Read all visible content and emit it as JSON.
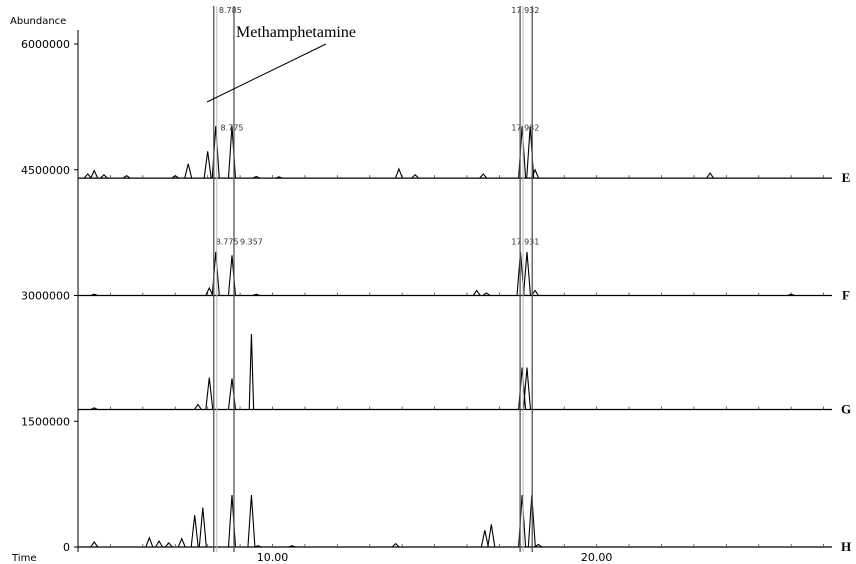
{
  "chart_data": {
    "type": "line",
    "ylabel": "Abundance",
    "xlabel": "Time",
    "y_ticks": [
      {
        "value": 6000000,
        "label": "6000000"
      },
      {
        "value": 4500000,
        "label": "4500000"
      },
      {
        "value": 3000000,
        "label": "3000000"
      },
      {
        "value": 1500000,
        "label": "1500000"
      },
      {
        "value": 0,
        "label": "0"
      }
    ],
    "x_ticks": [
      {
        "value": 10.0,
        "label": "10.00"
      },
      {
        "value": 20.0,
        "label": "20.00"
      }
    ],
    "xlim": [
      4.0,
      28.0
    ],
    "ylim": [
      0,
      6000000
    ],
    "annotation": {
      "text": "Methamphetamine",
      "x": 8.8
    },
    "series": [
      {
        "name": "E",
        "baseline": 4400000,
        "peak_labels": [
          {
            "x": 8.7,
            "text": "8.785"
          },
          {
            "x": 17.8,
            "text": "17.932"
          }
        ],
        "peaks": [
          {
            "x": 4.3,
            "h": 50000
          },
          {
            "x": 4.5,
            "h": 90000
          },
          {
            "x": 4.8,
            "h": 40000
          },
          {
            "x": 5.5,
            "h": 30000
          },
          {
            "x": 7.0,
            "h": 30000
          },
          {
            "x": 7.4,
            "h": 170000
          },
          {
            "x": 8.0,
            "h": 320000
          },
          {
            "x": 8.25,
            "h": 620000
          },
          {
            "x": 8.75,
            "h": 620000
          },
          {
            "x": 9.5,
            "h": 20000
          },
          {
            "x": 10.2,
            "h": 15000
          },
          {
            "x": 13.9,
            "h": 110000
          },
          {
            "x": 14.4,
            "h": 40000
          },
          {
            "x": 16.5,
            "h": 50000
          },
          {
            "x": 17.7,
            "h": 620000
          },
          {
            "x": 17.95,
            "h": 620000
          },
          {
            "x": 18.1,
            "h": 100000
          },
          {
            "x": 23.5,
            "h": 60000
          }
        ]
      },
      {
        "name": "F",
        "baseline": 3000000,
        "peak_labels": [
          {
            "x": 8.75,
            "text": "8.775"
          },
          {
            "x": 17.8,
            "text": "17.932"
          }
        ],
        "peaks": [
          {
            "x": 4.5,
            "h": 15000
          },
          {
            "x": 8.05,
            "h": 90000
          },
          {
            "x": 8.25,
            "h": 520000
          },
          {
            "x": 8.75,
            "h": 480000
          },
          {
            "x": 9.5,
            "h": 15000
          },
          {
            "x": 16.3,
            "h": 60000
          },
          {
            "x": 16.6,
            "h": 30000
          },
          {
            "x": 17.65,
            "h": 520000
          },
          {
            "x": 17.85,
            "h": 520000
          },
          {
            "x": 18.1,
            "h": 60000
          },
          {
            "x": 26.0,
            "h": 15000
          }
        ]
      },
      {
        "name": "G",
        "baseline": 1640000,
        "peak_labels": [
          {
            "x": 8.6,
            "text": "8.775"
          },
          {
            "x": 9.35,
            "text": "9.357"
          },
          {
            "x": 17.8,
            "text": "17.931"
          }
        ],
        "peaks": [
          {
            "x": 4.5,
            "h": 20000
          },
          {
            "x": 7.7,
            "h": 60000
          },
          {
            "x": 8.05,
            "h": 380000
          },
          {
            "x": 8.75,
            "h": 370000
          },
          {
            "x": 9.35,
            "h": 900000
          },
          {
            "x": 17.7,
            "h": 500000
          },
          {
            "x": 17.85,
            "h": 500000
          }
        ]
      },
      {
        "name": "H",
        "baseline": 0,
        "peak_labels": [],
        "peaks": [
          {
            "x": 4.5,
            "h": 60000
          },
          {
            "x": 6.2,
            "h": 110000
          },
          {
            "x": 6.5,
            "h": 70000
          },
          {
            "x": 6.8,
            "h": 50000
          },
          {
            "x": 7.2,
            "h": 100000
          },
          {
            "x": 7.6,
            "h": 380000
          },
          {
            "x": 7.85,
            "h": 470000
          },
          {
            "x": 8.75,
            "h": 620000
          },
          {
            "x": 9.35,
            "h": 620000
          },
          {
            "x": 9.55,
            "h": 15000
          },
          {
            "x": 10.6,
            "h": 15000
          },
          {
            "x": 13.8,
            "h": 40000
          },
          {
            "x": 16.55,
            "h": 200000
          },
          {
            "x": 16.75,
            "h": 270000
          },
          {
            "x": 17.7,
            "h": 620000
          },
          {
            "x": 18.0,
            "h": 620000
          },
          {
            "x": 18.2,
            "h": 30000
          }
        ]
      }
    ]
  }
}
